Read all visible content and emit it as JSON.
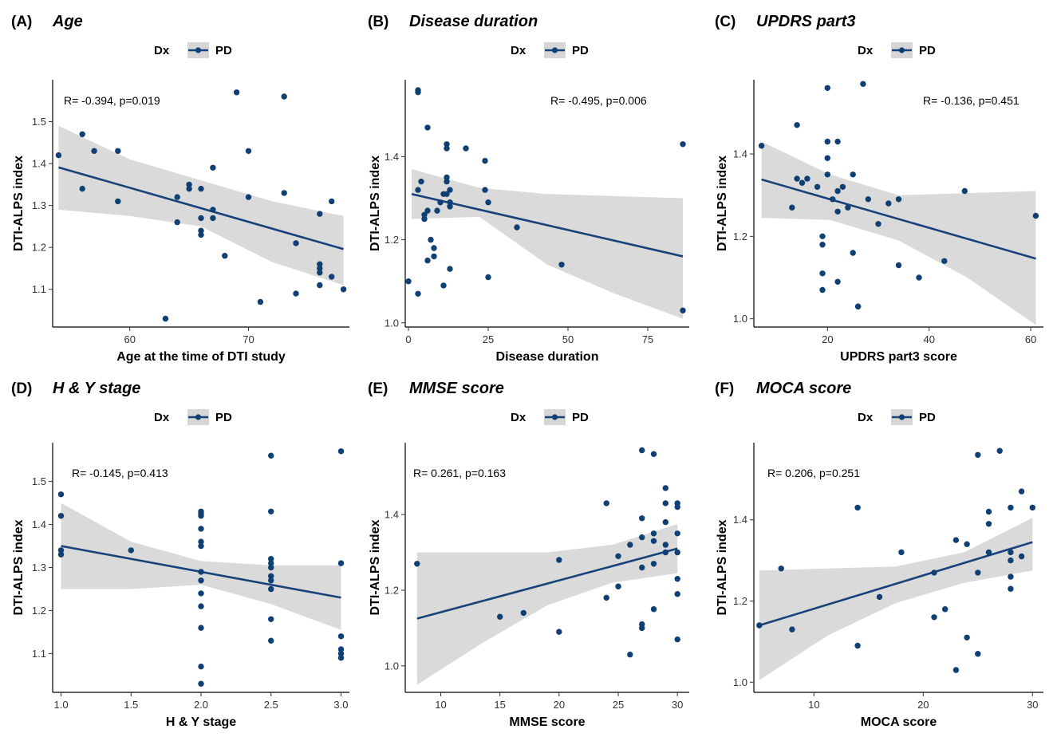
{
  "chart_data": [
    {
      "type": "scatter",
      "panel_label": "(A)",
      "title": "Age",
      "legend_title": "Dx",
      "legend_entry": "PD",
      "xlabel": "Age at the time of DTI study",
      "ylabel": "DTI-ALPS index",
      "annotation": "R= -0.394, p=0.019",
      "xlim": [
        53.5,
        78.5
      ],
      "ylim": [
        1.01,
        1.6
      ],
      "xticks": [
        60,
        70
      ],
      "yticks": [
        1.1,
        1.2,
        1.3,
        1.4,
        1.5
      ],
      "xtick_labels": [
        "60",
        "70"
      ],
      "ytick_labels": [
        "1.1",
        "1.2",
        "1.3",
        "1.4",
        "1.5"
      ],
      "fit_line": {
        "x": [
          54,
          78
        ],
        "y": [
          1.391,
          1.196
        ]
      },
      "ci_upper": [
        1.49,
        1.41,
        1.36,
        1.31,
        1.275
      ],
      "ci_lower": [
        1.29,
        1.275,
        1.25,
        1.165,
        1.11
      ],
      "points": [
        [
          54,
          1.42
        ],
        [
          56,
          1.47
        ],
        [
          56,
          1.34
        ],
        [
          57,
          1.43
        ],
        [
          59,
          1.43
        ],
        [
          59,
          1.31
        ],
        [
          63,
          1.03
        ],
        [
          64,
          1.26
        ],
        [
          64,
          1.32
        ],
        [
          65,
          1.35
        ],
        [
          65,
          1.34
        ],
        [
          66,
          1.34
        ],
        [
          66,
          1.27
        ],
        [
          66,
          1.24
        ],
        [
          66,
          1.23
        ],
        [
          67,
          1.39
        ],
        [
          67,
          1.29
        ],
        [
          67,
          1.27
        ],
        [
          68,
          1.18
        ],
        [
          69,
          1.57
        ],
        [
          70,
          1.43
        ],
        [
          70,
          1.32
        ],
        [
          71,
          1.07
        ],
        [
          73,
          1.56
        ],
        [
          73,
          1.33
        ],
        [
          74,
          1.21
        ],
        [
          74,
          1.09
        ],
        [
          76,
          1.28
        ],
        [
          76,
          1.16
        ],
        [
          76,
          1.15
        ],
        [
          76,
          1.14
        ],
        [
          76,
          1.11
        ],
        [
          77,
          1.31
        ],
        [
          77,
          1.13
        ],
        [
          78,
          1.1
        ]
      ]
    },
    {
      "type": "scatter",
      "panel_label": "(B)",
      "title": "Disease duration",
      "legend_title": "Dx",
      "legend_entry": "PD",
      "xlabel": "Disease duration",
      "ylabel": "DTI-ALPS index",
      "annotation": "R= -0.495, p=0.006",
      "xlim": [
        -1,
        88
      ],
      "ylim": [
        0.99,
        1.585
      ],
      "xticks": [
        0,
        25,
        50,
        75
      ],
      "yticks": [
        1.0,
        1.2,
        1.4
      ],
      "xtick_labels": [
        "0",
        "25",
        "50",
        "75"
      ],
      "ytick_labels": [
        "1.0",
        "1.2",
        "1.4"
      ],
      "fit_line": {
        "x": [
          1,
          86
        ],
        "y": [
          1.31,
          1.16
        ]
      },
      "ci_upper": [
        1.37,
        1.325,
        1.31,
        1.305,
        1.3
      ],
      "ci_lower": [
        1.25,
        1.255,
        1.14,
        1.07,
        1.01
      ],
      "points": [
        [
          3,
          1.56
        ],
        [
          3,
          1.555
        ],
        [
          6,
          1.47
        ],
        [
          3,
          1.32
        ],
        [
          4,
          1.34
        ],
        [
          5,
          1.25
        ],
        [
          5,
          1.26
        ],
        [
          6,
          1.27
        ],
        [
          6,
          1.15
        ],
        [
          7,
          1.2
        ],
        [
          8,
          1.18
        ],
        [
          9,
          1.27
        ],
        [
          10,
          1.29
        ],
        [
          11,
          1.31
        ],
        [
          12,
          1.43
        ],
        [
          12,
          1.42
        ],
        [
          12,
          1.35
        ],
        [
          12,
          1.34
        ],
        [
          12,
          1.31
        ],
        [
          13,
          1.32
        ],
        [
          13,
          1.29
        ],
        [
          13,
          1.28
        ],
        [
          13,
          1.13
        ],
        [
          11,
          1.09
        ],
        [
          18,
          1.42
        ],
        [
          24,
          1.39
        ],
        [
          24,
          1.32
        ],
        [
          25,
          1.29
        ],
        [
          25,
          1.11
        ],
        [
          34,
          1.23
        ],
        [
          48,
          1.14
        ],
        [
          86,
          1.43
        ],
        [
          86,
          1.03
        ],
        [
          3,
          1.07
        ],
        [
          0,
          1.1
        ],
        [
          8,
          1.16
        ]
      ]
    },
    {
      "type": "scatter",
      "panel_label": "(C)",
      "title": "UPDRS part3",
      "legend_title": "Dx",
      "legend_entry": "PD",
      "xlabel": "UPDRS part3 score",
      "ylabel": "DTI-ALPS index",
      "annotation": "R= -0.136, p=0.451",
      "xlim": [
        5.5,
        62.5
      ],
      "ylim": [
        0.98,
        1.58
      ],
      "xticks": [
        20,
        40,
        60
      ],
      "yticks": [
        1.0,
        1.2,
        1.4
      ],
      "xtick_labels": [
        "20",
        "40",
        "60"
      ],
      "ytick_labels": [
        "1.0",
        "1.2",
        "1.4"
      ],
      "fit_line": {
        "x": [
          7,
          61
        ],
        "y": [
          1.338,
          1.146
        ]
      },
      "ci_upper": [
        1.43,
        1.35,
        1.3,
        1.305,
        1.31
      ],
      "ci_lower": [
        1.245,
        1.24,
        1.19,
        1.1,
        0.985
      ],
      "points": [
        [
          7,
          1.42
        ],
        [
          13,
          1.27
        ],
        [
          14,
          1.47
        ],
        [
          14,
          1.34
        ],
        [
          15,
          1.33
        ],
        [
          16,
          1.34
        ],
        [
          18,
          1.32
        ],
        [
          19,
          1.2
        ],
        [
          19,
          1.18
        ],
        [
          19,
          1.11
        ],
        [
          19,
          1.07
        ],
        [
          20,
          1.56
        ],
        [
          20,
          1.43
        ],
        [
          20,
          1.39
        ],
        [
          20,
          1.35
        ],
        [
          21,
          1.29
        ],
        [
          22,
          1.43
        ],
        [
          22,
          1.31
        ],
        [
          22,
          1.26
        ],
        [
          22,
          1.09
        ],
        [
          23,
          1.32
        ],
        [
          24,
          1.27
        ],
        [
          25,
          1.35
        ],
        [
          25,
          1.16
        ],
        [
          26,
          1.03
        ],
        [
          26,
          1.03
        ],
        [
          27,
          1.57
        ],
        [
          28,
          1.29
        ],
        [
          30,
          1.23
        ],
        [
          32,
          1.28
        ],
        [
          34,
          1.29
        ],
        [
          34,
          1.13
        ],
        [
          38,
          1.1
        ],
        [
          43,
          1.14
        ],
        [
          47,
          1.31
        ],
        [
          61,
          1.25
        ]
      ]
    },
    {
      "type": "scatter",
      "panel_label": "(D)",
      "title": "H & Y stage",
      "legend_title": "Dx",
      "legend_entry": "PD",
      "xlabel": "H & Y stage",
      "ylabel": "DTI-ALPS index",
      "annotation": "R= -0.145, p=0.413",
      "xlim": [
        0.94,
        3.06
      ],
      "ylim": [
        1.01,
        1.59
      ],
      "xticks": [
        1.0,
        1.5,
        2.0,
        2.5,
        3.0
      ],
      "yticks": [
        1.1,
        1.2,
        1.3,
        1.4,
        1.5
      ],
      "xtick_labels": [
        "1.0",
        "1.5",
        "2.0",
        "2.5",
        "3.0"
      ],
      "ytick_labels": [
        "1.1",
        "1.2",
        "1.3",
        "1.4",
        "1.5"
      ],
      "fit_line": {
        "x": [
          1.0,
          3.0
        ],
        "y": [
          1.35,
          1.23
        ]
      },
      "ci_upper": [
        1.45,
        1.36,
        1.315,
        1.305,
        1.305
      ],
      "ci_lower": [
        1.25,
        1.25,
        1.26,
        1.215,
        1.155
      ],
      "points": [
        [
          1.0,
          1.47
        ],
        [
          1.0,
          1.42
        ],
        [
          1.0,
          1.34
        ],
        [
          1.0,
          1.33
        ],
        [
          1.5,
          1.34
        ],
        [
          2.0,
          1.43
        ],
        [
          2.0,
          1.425
        ],
        [
          2.0,
          1.42
        ],
        [
          2.0,
          1.39
        ],
        [
          2.0,
          1.36
        ],
        [
          2.0,
          1.35
        ],
        [
          2.0,
          1.29
        ],
        [
          2.0,
          1.27
        ],
        [
          2.0,
          1.24
        ],
        [
          2.0,
          1.21
        ],
        [
          2.0,
          1.16
        ],
        [
          2.0,
          1.07
        ],
        [
          2.0,
          1.03
        ],
        [
          2.5,
          1.56
        ],
        [
          2.5,
          1.43
        ],
        [
          2.5,
          1.32
        ],
        [
          2.5,
          1.31
        ],
        [
          2.5,
          1.3
        ],
        [
          2.5,
          1.28
        ],
        [
          2.5,
          1.27
        ],
        [
          2.5,
          1.25
        ],
        [
          2.5,
          1.18
        ],
        [
          2.5,
          1.13
        ],
        [
          3.0,
          1.57
        ],
        [
          3.0,
          1.31
        ],
        [
          3.0,
          1.14
        ],
        [
          3.0,
          1.11
        ],
        [
          3.0,
          1.1
        ],
        [
          3.0,
          1.09
        ]
      ]
    },
    {
      "type": "scatter",
      "panel_label": "(E)",
      "title": "MMSE score",
      "legend_title": "Dx",
      "legend_entry": "PD",
      "xlabel": "MMSE score",
      "ylabel": "DTI-ALPS index",
      "annotation": "R= 0.261, p=0.163",
      "xlim": [
        7,
        31
      ],
      "ylim": [
        0.93,
        1.59
      ],
      "xticks": [
        10,
        15,
        20,
        25,
        30
      ],
      "yticks": [
        1.0,
        1.2,
        1.4
      ],
      "xtick_labels": [
        "10",
        "15",
        "20",
        "25",
        "30"
      ],
      "ytick_labels": [
        "1.0",
        "1.2",
        "1.4"
      ],
      "fit_line": {
        "x": [
          8,
          30
        ],
        "y": [
          1.125,
          1.31
        ]
      },
      "ci_upper": [
        1.3,
        1.3,
        1.3,
        1.32,
        1.375
      ],
      "ci_lower": [
        0.95,
        1.06,
        1.16,
        1.22,
        1.245
      ],
      "points": [
        [
          8,
          1.27
        ],
        [
          15,
          1.13
        ],
        [
          17,
          1.14
        ],
        [
          20,
          1.28
        ],
        [
          20,
          1.09
        ],
        [
          24,
          1.43
        ],
        [
          24,
          1.18
        ],
        [
          25,
          1.29
        ],
        [
          25,
          1.21
        ],
        [
          26,
          1.32
        ],
        [
          26,
          1.03
        ],
        [
          27,
          1.57
        ],
        [
          27,
          1.39
        ],
        [
          27,
          1.34
        ],
        [
          27,
          1.26
        ],
        [
          27,
          1.11
        ],
        [
          27,
          1.1
        ],
        [
          28,
          1.56
        ],
        [
          28,
          1.35
        ],
        [
          28,
          1.33
        ],
        [
          28,
          1.27
        ],
        [
          28,
          1.15
        ],
        [
          29,
          1.47
        ],
        [
          29,
          1.43
        ],
        [
          29,
          1.38
        ],
        [
          29,
          1.32
        ],
        [
          29,
          1.3
        ],
        [
          30,
          1.43
        ],
        [
          30,
          1.42
        ],
        [
          30,
          1.35
        ],
        [
          30,
          1.3
        ],
        [
          30,
          1.23
        ],
        [
          30,
          1.19
        ],
        [
          30,
          1.07
        ]
      ]
    },
    {
      "type": "scatter",
      "panel_label": "(F)",
      "title": "MOCA score",
      "legend_title": "Dx",
      "legend_entry": "PD",
      "xlabel": "MOCA score",
      "ylabel": "DTI-ALPS index",
      "annotation": "R= 0.206, p=0.251",
      "xlim": [
        4.5,
        31
      ],
      "ylim": [
        0.975,
        1.59
      ],
      "xticks": [
        10,
        20,
        30
      ],
      "yticks": [
        1.0,
        1.2,
        1.4
      ],
      "xtick_labels": [
        "10",
        "20",
        "30"
      ],
      "ytick_labels": [
        "1.0",
        "1.2",
        "1.4"
      ],
      "fit_line": {
        "x": [
          5,
          30
        ],
        "y": [
          1.14,
          1.345
        ]
      },
      "ci_upper": [
        1.275,
        1.28,
        1.285,
        1.32,
        1.405
      ],
      "ci_lower": [
        1.005,
        1.115,
        1.195,
        1.245,
        1.275
      ],
      "points": [
        [
          5,
          1.14
        ],
        [
          7,
          1.28
        ],
        [
          8,
          1.13
        ],
        [
          14,
          1.43
        ],
        [
          14,
          1.09
        ],
        [
          16,
          1.21
        ],
        [
          18,
          1.32
        ],
        [
          21,
          1.27
        ],
        [
          21,
          1.16
        ],
        [
          22,
          1.18
        ],
        [
          23,
          1.35
        ],
        [
          23,
          1.03
        ],
        [
          24,
          1.34
        ],
        [
          24,
          1.11
        ],
        [
          25,
          1.56
        ],
        [
          25,
          1.27
        ],
        [
          25,
          1.07
        ],
        [
          26,
          1.42
        ],
        [
          26,
          1.39
        ],
        [
          26,
          1.32
        ],
        [
          27,
          1.57
        ],
        [
          28,
          1.43
        ],
        [
          28,
          1.32
        ],
        [
          28,
          1.3
        ],
        [
          28,
          1.26
        ],
        [
          28,
          1.23
        ],
        [
          29,
          1.47
        ],
        [
          29,
          1.31
        ],
        [
          30,
          1.43
        ]
      ]
    }
  ]
}
